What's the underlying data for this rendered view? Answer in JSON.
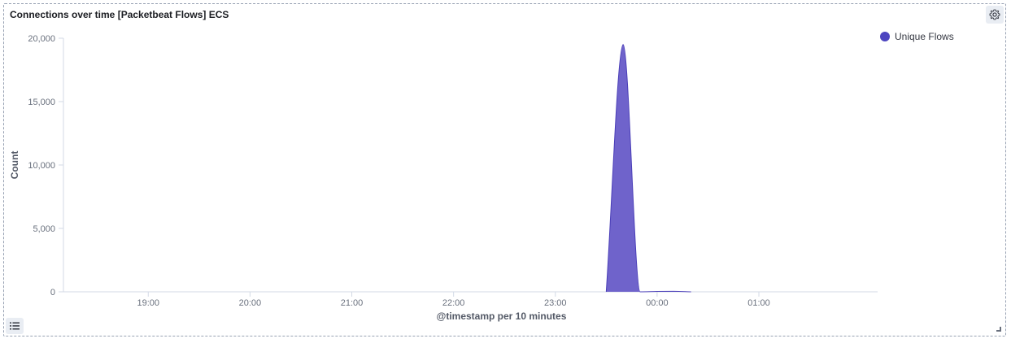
{
  "panel": {
    "title": "Connections over time [Packetbeat Flows] ECS"
  },
  "icons": {
    "settings": "gear-icon",
    "legend_toggle": "list-icon"
  },
  "colors": {
    "series": "#6f63cb",
    "series_stroke": "#4a3eb8",
    "legend_dot": "#4d45c0"
  },
  "chart_data": {
    "type": "area",
    "title": "Connections over time [Packetbeat Flows] ECS",
    "xlabel": "@timestamp per 10 minutes",
    "ylabel": "Count",
    "ylim": [
      0,
      20000
    ],
    "xlim": [
      "18:10",
      "02:10"
    ],
    "yticks": [
      "0",
      "5,000",
      "10,000",
      "15,000",
      "20,000"
    ],
    "ytick_values": [
      0,
      5000,
      10000,
      15000,
      20000
    ],
    "xticks": [
      "19:00",
      "20:00",
      "21:00",
      "22:00",
      "23:00",
      "00:00",
      "01:00"
    ],
    "legend_position": "top-right",
    "grid": false,
    "series": [
      {
        "name": "Unique Flows",
        "x": [
          "23:30",
          "23:40",
          "23:50",
          "00:00",
          "00:10",
          "00:20"
        ],
        "values": [
          0,
          19500,
          0,
          30,
          40,
          0
        ]
      }
    ]
  }
}
